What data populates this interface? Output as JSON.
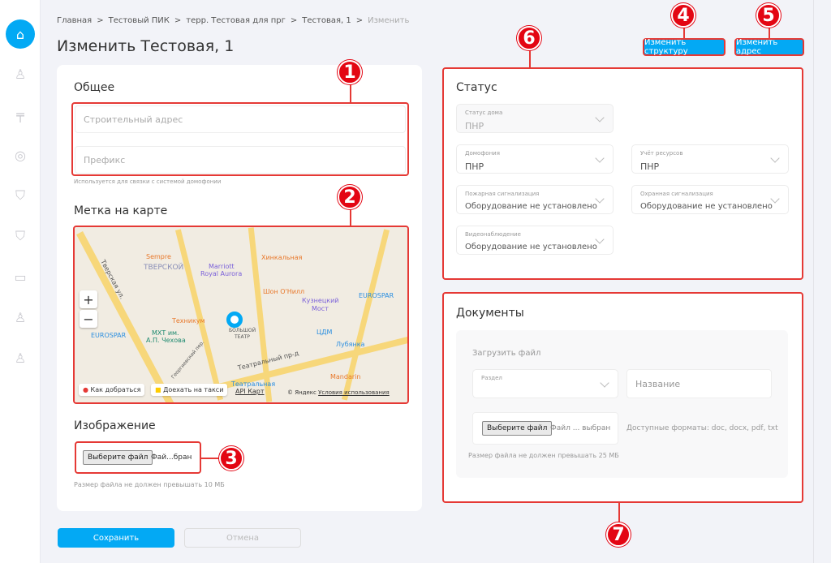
{
  "sidebar": {
    "items": [
      {
        "icon": "home-icon",
        "active": true
      },
      {
        "icon": "intercom-icon"
      },
      {
        "icon": "barrier-icon"
      },
      {
        "icon": "meter-icon"
      },
      {
        "icon": "fire-shield-icon"
      },
      {
        "icon": "security-shield-icon"
      },
      {
        "icon": "camera-icon"
      },
      {
        "icon": "person-icon"
      },
      {
        "icon": "person-bag-icon"
      }
    ]
  },
  "breadcrumb": [
    "Главная",
    "Тестовый ПИК",
    "терр. Тестовая для прг",
    "Тестовая, 1",
    "Изменить"
  ],
  "breadcrumb_sep": ">",
  "page_title": "Изменить Тестовая, 1",
  "header_buttons": {
    "structure": "Изменить структуру",
    "address": "Изменить адрес"
  },
  "general": {
    "heading": "Общее",
    "address_placeholder": "Строительный адрес",
    "prefix_placeholder": "Префикс",
    "prefix_hint": "Используется для связки с системой домофонии"
  },
  "map": {
    "heading": "Метка на карте",
    "zoom_in": "+",
    "zoom_out": "−",
    "route": "Как добраться",
    "taxi": "Доехать на такси",
    "api": "API Карт",
    "copyright": "© Яндекс",
    "terms": "Условия использования",
    "labels": [
      "Sempre",
      "ТВЕРСКОЙ",
      "Marriott",
      "Royal Aurora",
      "Хинкальная",
      "Шон О'Нилл",
      "Кузнецкий",
      "Мост",
      "EUROSPAR",
      "Техникум",
      "МХТ им.",
      "А.П. Чехова",
      "EUROSPAR",
      "БОЛЬШОЙ",
      "ТЕАТР",
      "ЦДМ",
      "Лубянка",
      "Театральный пр-д",
      "Тверская ул.",
      "Театральная",
      "Mandarin",
      "Георгиевский пер."
    ]
  },
  "image": {
    "heading": "Изображение",
    "choose": "Выберите файл",
    "no_file": "Фай...бран",
    "hint": "Размер файла не должен превышать 10 МБ"
  },
  "actions": {
    "save": "Сохранить",
    "cancel": "Отмена"
  },
  "status": {
    "heading": "Статус",
    "fields": [
      {
        "label": "Статус дома",
        "value": "ПНР",
        "disabled": true
      },
      {
        "label": "Домофония",
        "value": "ПНР"
      },
      {
        "label": "Учёт ресурсов",
        "value": "ПНР"
      },
      {
        "label": "Пожарная сигнализация",
        "value": "Оборудование не установлено"
      },
      {
        "label": "Охранная сигнализация",
        "value": "Оборудование не установлено"
      },
      {
        "label": "Видеонаблюдение",
        "value": "Оборудование не установлено"
      }
    ]
  },
  "documents": {
    "heading": "Документы",
    "upload": "Загрузить файл",
    "section_label": "Раздел",
    "name_placeholder": "Название",
    "choose": "Выберите файл",
    "no_file": "Файл ... выбран",
    "formats": "Доступные форматы: doc, docx, pdf, txt",
    "hint": "Размер файла не должен превышать 25 МБ"
  },
  "callouts": [
    "1",
    "2",
    "3",
    "4",
    "5",
    "6",
    "7"
  ],
  "colors": {
    "accent": "#03a9f4",
    "callout": "#e30613",
    "background": "#f2f3f8"
  }
}
